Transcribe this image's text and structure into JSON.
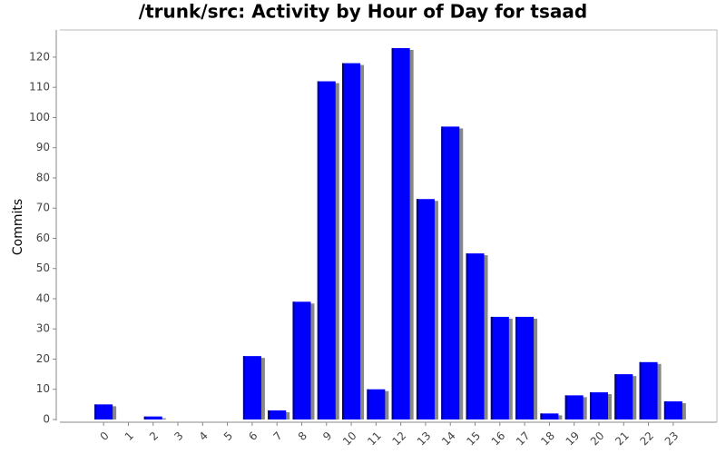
{
  "chart_data": {
    "type": "bar",
    "title": "/trunk/src: Activity by Hour of Day for tsaad",
    "y_label": "Commits",
    "categories": [
      "0",
      "1",
      "2",
      "3",
      "4",
      "5",
      "6",
      "7",
      "8",
      "9",
      "10",
      "11",
      "12",
      "13",
      "14",
      "15",
      "16",
      "17",
      "18",
      "19",
      "20",
      "21",
      "22",
      "23"
    ],
    "values": [
      5,
      0,
      1,
      0,
      0,
      0,
      21,
      3,
      39,
      112,
      118,
      10,
      123,
      73,
      97,
      55,
      34,
      34,
      2,
      8,
      9,
      15,
      19,
      6
    ],
    "color": "#0000ff",
    "ylim": [
      0,
      129
    ],
    "yticks": [
      0,
      10,
      20,
      30,
      40,
      50,
      60,
      70,
      80,
      90,
      100,
      110,
      120
    ],
    "grid": false
  }
}
